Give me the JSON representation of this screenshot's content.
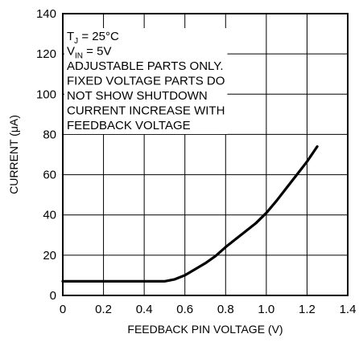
{
  "chart_data": {
    "type": "line",
    "xlabel": "FEEDBACK PIN VOLTAGE (V)",
    "ylabel": "CURRENT (μA)",
    "xlim": [
      0,
      1.4
    ],
    "ylim": [
      0,
      140
    ],
    "x_ticks": [
      "0",
      "0.2",
      "0.4",
      "0.6",
      "0.8",
      "1.0",
      "1.2",
      "1.4"
    ],
    "y_ticks": [
      "0",
      "20",
      "40",
      "60",
      "80",
      "100",
      "120",
      "140"
    ],
    "grid": true,
    "series": [
      {
        "x": [
          0,
          0.1,
          0.2,
          0.3,
          0.4,
          0.5,
          0.55,
          0.6,
          0.65,
          0.7,
          0.75,
          0.8,
          0.85,
          0.9,
          0.95,
          1.0,
          1.05,
          1.1,
          1.15,
          1.2,
          1.25
        ],
        "y": [
          7,
          7,
          7,
          7,
          7,
          7,
          8,
          10,
          13,
          16,
          19.5,
          24,
          28,
          32,
          36,
          41,
          47,
          53.5,
          60,
          66.5,
          74
        ]
      }
    ],
    "annotations": [
      {
        "main": "T",
        "sub": "J",
        "rest": " = 25°C"
      },
      {
        "main": "V",
        "sub": "IN",
        "rest": " = 5V"
      },
      {
        "main": "ADJUSTABLE PARTS ONLY.",
        "sub": "",
        "rest": ""
      },
      {
        "main": "FIXED VOLTAGE PARTS DO",
        "sub": "",
        "rest": ""
      },
      {
        "main": "NOT SHOW SHUTDOWN",
        "sub": "",
        "rest": ""
      },
      {
        "main": "CURRENT INCREASE WITH",
        "sub": "",
        "rest": ""
      },
      {
        "main": "FEEDBACK VOLTAGE",
        "sub": "",
        "rest": ""
      }
    ]
  }
}
